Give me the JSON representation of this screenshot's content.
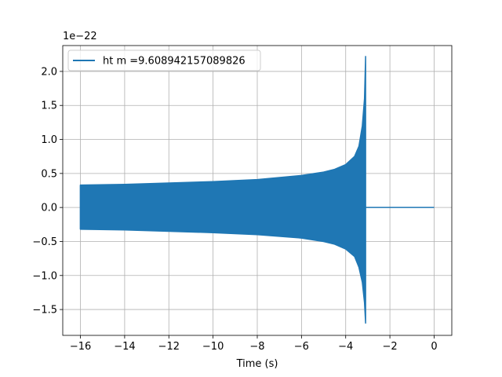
{
  "chart_data": {
    "type": "line",
    "title": "",
    "xlabel": "Time (s)",
    "ylabel": "",
    "y_offset_label": "1e−22",
    "xlim": [
      -16.8,
      0.8
    ],
    "ylim": [
      -1.88,
      2.38
    ],
    "xticks": [
      -16,
      -14,
      -12,
      -10,
      -8,
      -6,
      -4,
      -2,
      0
    ],
    "xtick_labels": [
      "−16",
      "−14",
      "−12",
      "−10",
      "−8",
      "−6",
      "−4",
      "−2",
      "0"
    ],
    "yticks": [
      -1.5,
      -1.0,
      -0.5,
      0.0,
      0.5,
      1.0,
      1.5,
      2.0
    ],
    "ytick_labels": [
      "−1.5",
      "−1.0",
      "−0.5",
      "0.0",
      "0.5",
      "1.0",
      "1.5",
      "2.0"
    ],
    "grid": true,
    "legend_position": "top-left",
    "series": [
      {
        "name": "ht m =9.608942157089826",
        "color": "#1f77b4",
        "envelope_x": [
          -16.0,
          -14.0,
          -12.0,
          -10.0,
          -8.0,
          -6.0,
          -5.0,
          -4.5,
          -4.0,
          -3.6,
          -3.4,
          -3.25,
          -3.15,
          -3.1
        ],
        "envelope_upper": [
          0.33,
          0.34,
          0.36,
          0.38,
          0.41,
          0.47,
          0.52,
          0.56,
          0.63,
          0.75,
          0.9,
          1.2,
          1.6,
          2.22
        ],
        "envelope_lower": [
          -0.32,
          -0.33,
          -0.35,
          -0.37,
          -0.4,
          -0.45,
          -0.5,
          -0.54,
          -0.61,
          -0.72,
          -0.88,
          -1.1,
          -1.4,
          -1.7
        ],
        "tail_x": [
          -3.1,
          0.0
        ],
        "tail_y": [
          0.0,
          0.0
        ]
      }
    ]
  }
}
